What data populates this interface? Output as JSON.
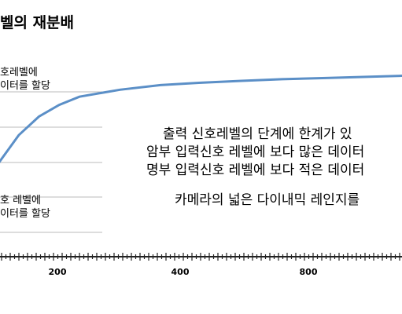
{
  "title": "벨의 재분배",
  "top_label": [
    "호레벨에",
    "이터를 할당"
  ],
  "bottom_label": [
    "호 레벨에",
    "이터를 할당"
  ],
  "explanation": [
    "출력 신호레벨의 단계에  한계가 있",
    "암부 입력신호 레벨에 보다 많은 데이터",
    "명부 입력신호 레벨에 보다 적은 데이터",
    "카메라의 넓은 다이내믹 레인지를"
  ],
  "colors": {
    "curve": "#5b8fc7",
    "grid": "#bbbbbb",
    "axis": "#222222"
  },
  "chart_data": {
    "type": "line",
    "title": "",
    "xlabel": "",
    "ylabel": "",
    "x_tick_labels": [
      "200",
      "400",
      "800"
    ],
    "series": [
      {
        "values_x": [
          0,
          50,
          100,
          150,
          200,
          300,
          400,
          500,
          600,
          700,
          800,
          900,
          1000
        ],
        "values_y": [
          0.62,
          0.74,
          0.82,
          0.87,
          0.905,
          0.935,
          0.955,
          0.965,
          0.973,
          0.98,
          0.985,
          0.99,
          0.995
        ]
      }
    ],
    "grid": true
  }
}
